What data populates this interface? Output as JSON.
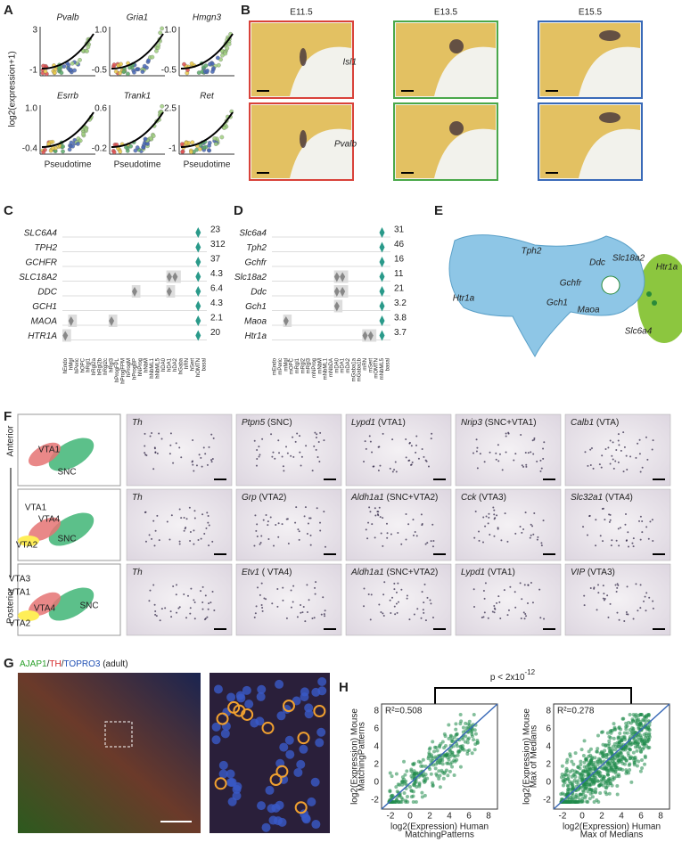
{
  "panel_labels": [
    "A",
    "B",
    "C",
    "D",
    "E",
    "F",
    "G",
    "H"
  ],
  "a": {
    "y_label": "log2(expression+1)",
    "x_label": "Pseudotime",
    "plots": [
      {
        "gene": "Pvalb",
        "y_top": "3",
        "y_bottom": "-1"
      },
      {
        "gene": "Gria1",
        "y_top": "1.0",
        "y_bottom": "-0.5"
      },
      {
        "gene": "Hmgn3",
        "y_top": "1.0",
        "y_bottom": "-0.5"
      },
      {
        "gene": "Esrrb",
        "y_top": "1.0",
        "y_bottom": "-0.4"
      },
      {
        "gene": "Trank1",
        "y_top": "0.6",
        "y_bottom": "-0.2"
      },
      {
        "gene": "Ret",
        "y_top": "2.5",
        "y_bottom": "-1"
      }
    ]
  },
  "b": {
    "stages": [
      "E11.5",
      "E13.5",
      "E15.5"
    ],
    "genes": [
      "Isl1",
      "Pvalb"
    ]
  },
  "c": {
    "genes": [
      "SLC6A4",
      "TPH2",
      "GCHFR",
      "SLC18A2",
      "DDC",
      "GCH1",
      "MAOA",
      "HTR1A"
    ],
    "max_values": [
      "23",
      "312",
      "37",
      "4.3",
      "6.4",
      "4.3",
      "2.1",
      "20"
    ],
    "cell_types": [
      "hEndo",
      "hMgl",
      "hPeric",
      "hOPC",
      "hRgl1",
      "hRgl2a",
      "hRgl2b",
      "hRgl2c",
      "hRgl3",
      "hProgFPL",
      "hProgFPM",
      "hProgM",
      "hProgBP",
      "hNProg",
      "hNbM",
      "hNbML1",
      "hNbML5",
      "hDA0",
      "hDA1",
      "hDA2",
      "hGaba",
      "hRN",
      "hSert",
      "hOMTN",
      "basal"
    ]
  },
  "d": {
    "genes": [
      "Slc6a4",
      "Tph2",
      "Gchfr",
      "Slc18a2",
      "Ddc",
      "Gch1",
      "Maoa",
      "Htr1a"
    ],
    "max_values": [
      "31",
      "46",
      "16",
      "11",
      "21",
      "3.2",
      "3.8",
      "3.7"
    ],
    "cell_types": [
      "mEndo",
      "mPeric",
      "mMgl",
      "mOPC",
      "mRgl1",
      "mRgl2",
      "mRgl3",
      "mNProg",
      "mNbM",
      "mNbML1",
      "mNbDA",
      "mDA0",
      "mDA1",
      "mDA2",
      "mGaba1a",
      "mGaba1b",
      "mRN",
      "mSert",
      "mOMTN",
      "mNbML5",
      "basal"
    ]
  },
  "e": {
    "labels": [
      "Tph2",
      "Ddc",
      "Slc18a2",
      "Htr1a",
      "Gchfr",
      "Gch1",
      "Maoa",
      "Htr1a",
      "Slc6a4"
    ]
  },
  "f": {
    "axis": [
      "Anterior",
      "Posterior"
    ],
    "schematics": [
      [
        "VTA1",
        "SNC"
      ],
      [
        "VTA1",
        "VTA4",
        "VTA2",
        "SNC"
      ],
      [
        "VTA3",
        "VTA1",
        "VTA4",
        "VTA2",
        "SNC"
      ]
    ],
    "rows": [
      [
        {
          "gene": "Th",
          "region": ""
        },
        {
          "gene": "Ptpn5",
          "region": "(SNC)"
        },
        {
          "gene": "Lypd1",
          "region": "(VTA1)"
        },
        {
          "gene": "Nrip3",
          "region": "(SNC+VTA1)"
        },
        {
          "gene": "Calb1",
          "region": "(VTA)"
        }
      ],
      [
        {
          "gene": "Th",
          "region": ""
        },
        {
          "gene": "Grp",
          "region": "(VTA2)"
        },
        {
          "gene": "Aldh1a1",
          "region": "(SNC+VTA2)"
        },
        {
          "gene": "Cck",
          "region": "(VTA3)"
        },
        {
          "gene": "Slc32a1",
          "region": "(VTA4)"
        }
      ],
      [
        {
          "gene": "Th",
          "region": ""
        },
        {
          "gene": "Etv1",
          "region": "( VTA4)"
        },
        {
          "gene": "Aldh1a1",
          "region": "(SNC+VTA2)"
        },
        {
          "gene": "Lypd1",
          "region": "(VTA1)"
        },
        {
          "gene": "VIP",
          "region": "(VTA3)"
        }
      ]
    ]
  },
  "g": {
    "title_parts": [
      {
        "text": "AJAP1",
        "color": "#2aa02a"
      },
      {
        "text": "/",
        "color": "#222222"
      },
      {
        "text": "TH",
        "color": "#d62728"
      },
      {
        "text": "/",
        "color": "#222222"
      },
      {
        "text": "TOPRO3",
        "color": "#1f4fb4"
      },
      {
        "text": " (adult)",
        "color": "#222222"
      }
    ]
  },
  "h": {
    "p_value": "p < 2x10",
    "p_exponent": "-12",
    "plots": [
      {
        "r2": "R²=0.508",
        "y_label": [
          "log2(Expression) Mouse",
          "MatchingPatterns"
        ],
        "x_label": [
          "log2(Expression) Human",
          "MatchingPatterns"
        ]
      },
      {
        "r2": "R²=0.278",
        "y_label": [
          "log2(Expression) Mouse",
          "Max of Medians"
        ],
        "x_label": [
          "log2(Expression) Human",
          "Max of Medians"
        ]
      }
    ],
    "ticks": [
      "-2",
      "0",
      "2",
      "4",
      "6",
      "8"
    ]
  }
}
